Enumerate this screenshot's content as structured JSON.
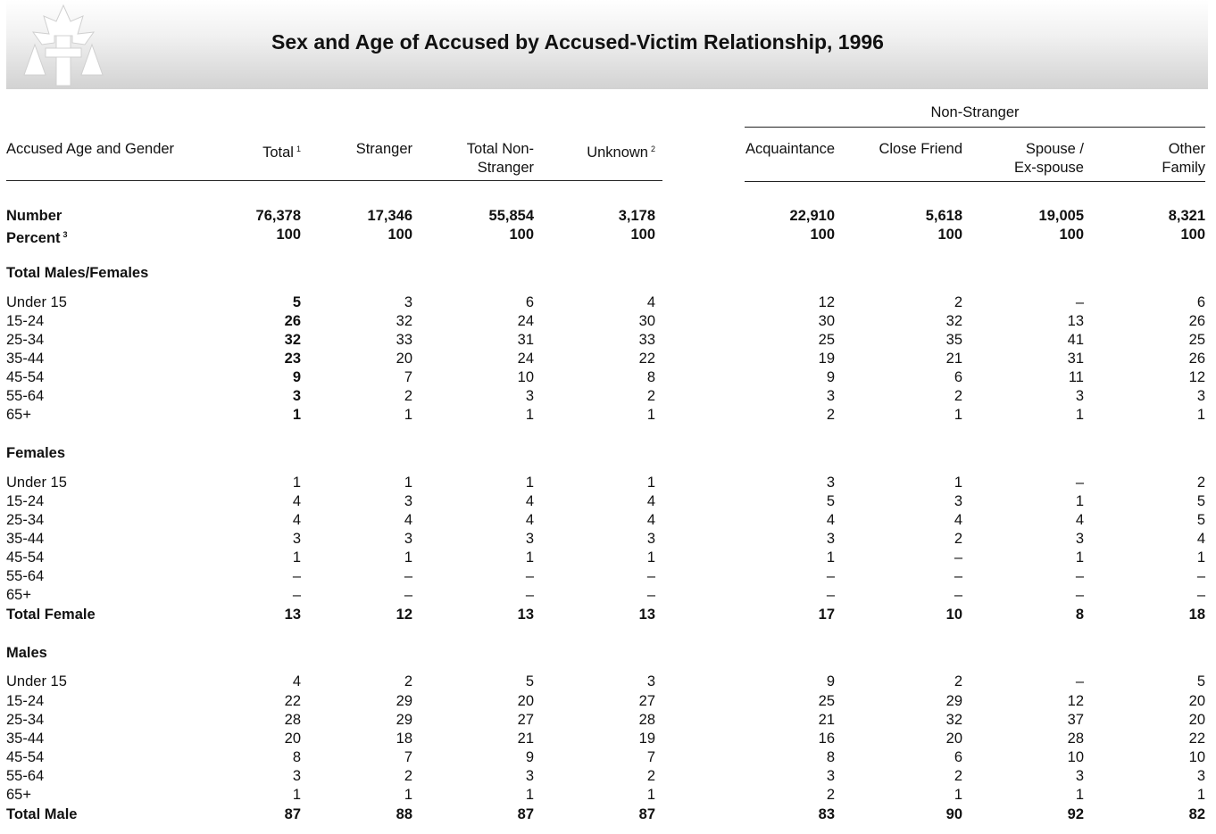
{
  "title": "Sex and Age of Accused by Accused-Victim Relationship, 1996",
  "header": {
    "group_label": "Non-Stranger",
    "row_label": "Accused Age and Gender",
    "columns": [
      {
        "label": "Total",
        "sup": "1"
      },
      {
        "label": "Stranger",
        "sup": ""
      },
      {
        "label": "Total Non-Stranger",
        "sup": ""
      },
      {
        "label": "Unknown",
        "sup": "2"
      },
      {
        "label": "Acquaintance",
        "sup": ""
      },
      {
        "label": "Close Friend",
        "sup": ""
      },
      {
        "label": "Spouse / Ex-spouse",
        "sup": ""
      },
      {
        "label": "Other Family",
        "sup": ""
      }
    ]
  },
  "rows": [
    {
      "label": "Number",
      "style": "bold",
      "values": [
        "76,378",
        "17,346",
        "55,854",
        "3,178",
        "22,910",
        "5,618",
        "19,005",
        "8,321"
      ]
    },
    {
      "label": "Percent",
      "label_sup": "3",
      "style": "bold",
      "values": [
        "100",
        "100",
        "100",
        "100",
        "100",
        "100",
        "100",
        "100"
      ]
    },
    {
      "label": "Total Males/Females",
      "style": "section",
      "values": []
    },
    {
      "label": "Under 15",
      "style": "totalbold",
      "values": [
        "5",
        "3",
        "6",
        "4",
        "12",
        "2",
        "–",
        "6"
      ]
    },
    {
      "label": "15-24",
      "style": "totalbold",
      "values": [
        "26",
        "32",
        "24",
        "30",
        "30",
        "32",
        "13",
        "26"
      ]
    },
    {
      "label": "25-34",
      "style": "totalbold",
      "values": [
        "32",
        "33",
        "31",
        "33",
        "25",
        "35",
        "41",
        "25"
      ]
    },
    {
      "label": "35-44",
      "style": "totalbold",
      "values": [
        "23",
        "20",
        "24",
        "22",
        "19",
        "21",
        "31",
        "26"
      ]
    },
    {
      "label": "45-54",
      "style": "totalbold",
      "values": [
        "9",
        "7",
        "10",
        "8",
        "9",
        "6",
        "11",
        "12"
      ]
    },
    {
      "label": "55-64",
      "style": "totalbold",
      "values": [
        "3",
        "2",
        "3",
        "2",
        "3",
        "2",
        "3",
        "3"
      ]
    },
    {
      "label": "65+",
      "style": "totalbold",
      "values": [
        "1",
        "1",
        "1",
        "1",
        "2",
        "1",
        "1",
        "1"
      ]
    },
    {
      "label": "Females",
      "style": "section",
      "values": []
    },
    {
      "label": "Under 15",
      "style": "normal",
      "values": [
        "1",
        "1",
        "1",
        "1",
        "3",
        "1",
        "–",
        "2"
      ]
    },
    {
      "label": "15-24",
      "style": "normal",
      "values": [
        "4",
        "3",
        "4",
        "4",
        "5",
        "3",
        "1",
        "5"
      ]
    },
    {
      "label": "25-34",
      "style": "normal",
      "values": [
        "4",
        "4",
        "4",
        "4",
        "4",
        "4",
        "4",
        "5"
      ]
    },
    {
      "label": "35-44",
      "style": "normal",
      "values": [
        "3",
        "3",
        "3",
        "3",
        "3",
        "2",
        "3",
        "4"
      ]
    },
    {
      "label": "45-54",
      "style": "normal",
      "values": [
        "1",
        "1",
        "1",
        "1",
        "1",
        "–",
        "1",
        "1"
      ]
    },
    {
      "label": "55-64",
      "style": "normal",
      "values": [
        "–",
        "–",
        "–",
        "–",
        "–",
        "–",
        "–",
        "–"
      ]
    },
    {
      "label": "65+",
      "style": "normal",
      "values": [
        "–",
        "–",
        "–",
        "–",
        "–",
        "–",
        "–",
        "–"
      ]
    },
    {
      "label": "Total Female",
      "style": "bold",
      "values": [
        "13",
        "12",
        "13",
        "13",
        "17",
        "10",
        "8",
        "18"
      ]
    },
    {
      "label": "Males",
      "style": "section",
      "values": []
    },
    {
      "label": "Under 15",
      "style": "normal",
      "values": [
        "4",
        "2",
        "5",
        "3",
        "9",
        "2",
        "–",
        "5"
      ]
    },
    {
      "label": "15-24",
      "style": "normal",
      "values": [
        "22",
        "29",
        "20",
        "27",
        "25",
        "29",
        "12",
        "20"
      ]
    },
    {
      "label": "25-34",
      "style": "normal",
      "values": [
        "28",
        "29",
        "27",
        "28",
        "21",
        "32",
        "37",
        "20"
      ]
    },
    {
      "label": "35-44",
      "style": "normal",
      "values": [
        "20",
        "18",
        "21",
        "19",
        "16",
        "20",
        "28",
        "22"
      ]
    },
    {
      "label": "45-54",
      "style": "normal",
      "values": [
        "8",
        "7",
        "9",
        "7",
        "8",
        "6",
        "10",
        "10"
      ]
    },
    {
      "label": "55-64",
      "style": "normal",
      "values": [
        "3",
        "2",
        "3",
        "2",
        "3",
        "2",
        "3",
        "3"
      ]
    },
    {
      "label": "65+",
      "style": "normal",
      "values": [
        "1",
        "1",
        "1",
        "1",
        "2",
        "1",
        "1",
        "1"
      ]
    },
    {
      "label": "Total Male",
      "style": "bold",
      "values": [
        "87",
        "88",
        "87",
        "87",
        "83",
        "90",
        "92",
        "82"
      ]
    }
  ]
}
